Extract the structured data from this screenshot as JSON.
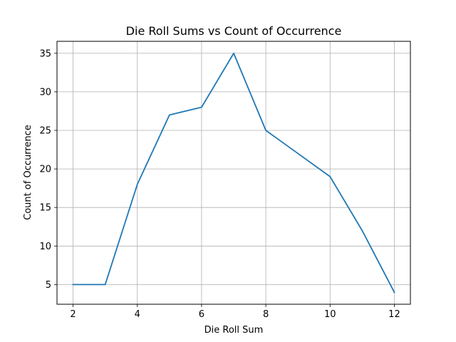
{
  "chart_data": {
    "type": "line",
    "title": "Die Roll Sums vs Count of Occurrence",
    "xlabel": "Die Roll Sum",
    "ylabel": "Count of Occurrence",
    "x": [
      2,
      3,
      4,
      5,
      6,
      7,
      8,
      9,
      10,
      11,
      12
    ],
    "series": [
      {
        "values": [
          5,
          5,
          18,
          27,
          28,
          35,
          25,
          22,
          19,
          12,
          4
        ],
        "color": "#1f77b4"
      }
    ],
    "xlim": [
      1.5,
      12.5
    ],
    "ylim": [
      2.45,
      36.55
    ],
    "xticks": [
      2,
      4,
      6,
      8,
      10,
      12
    ],
    "yticks": [
      5,
      10,
      15,
      20,
      25,
      30,
      35
    ],
    "grid": true,
    "grid_color": "#b0b0b0"
  }
}
